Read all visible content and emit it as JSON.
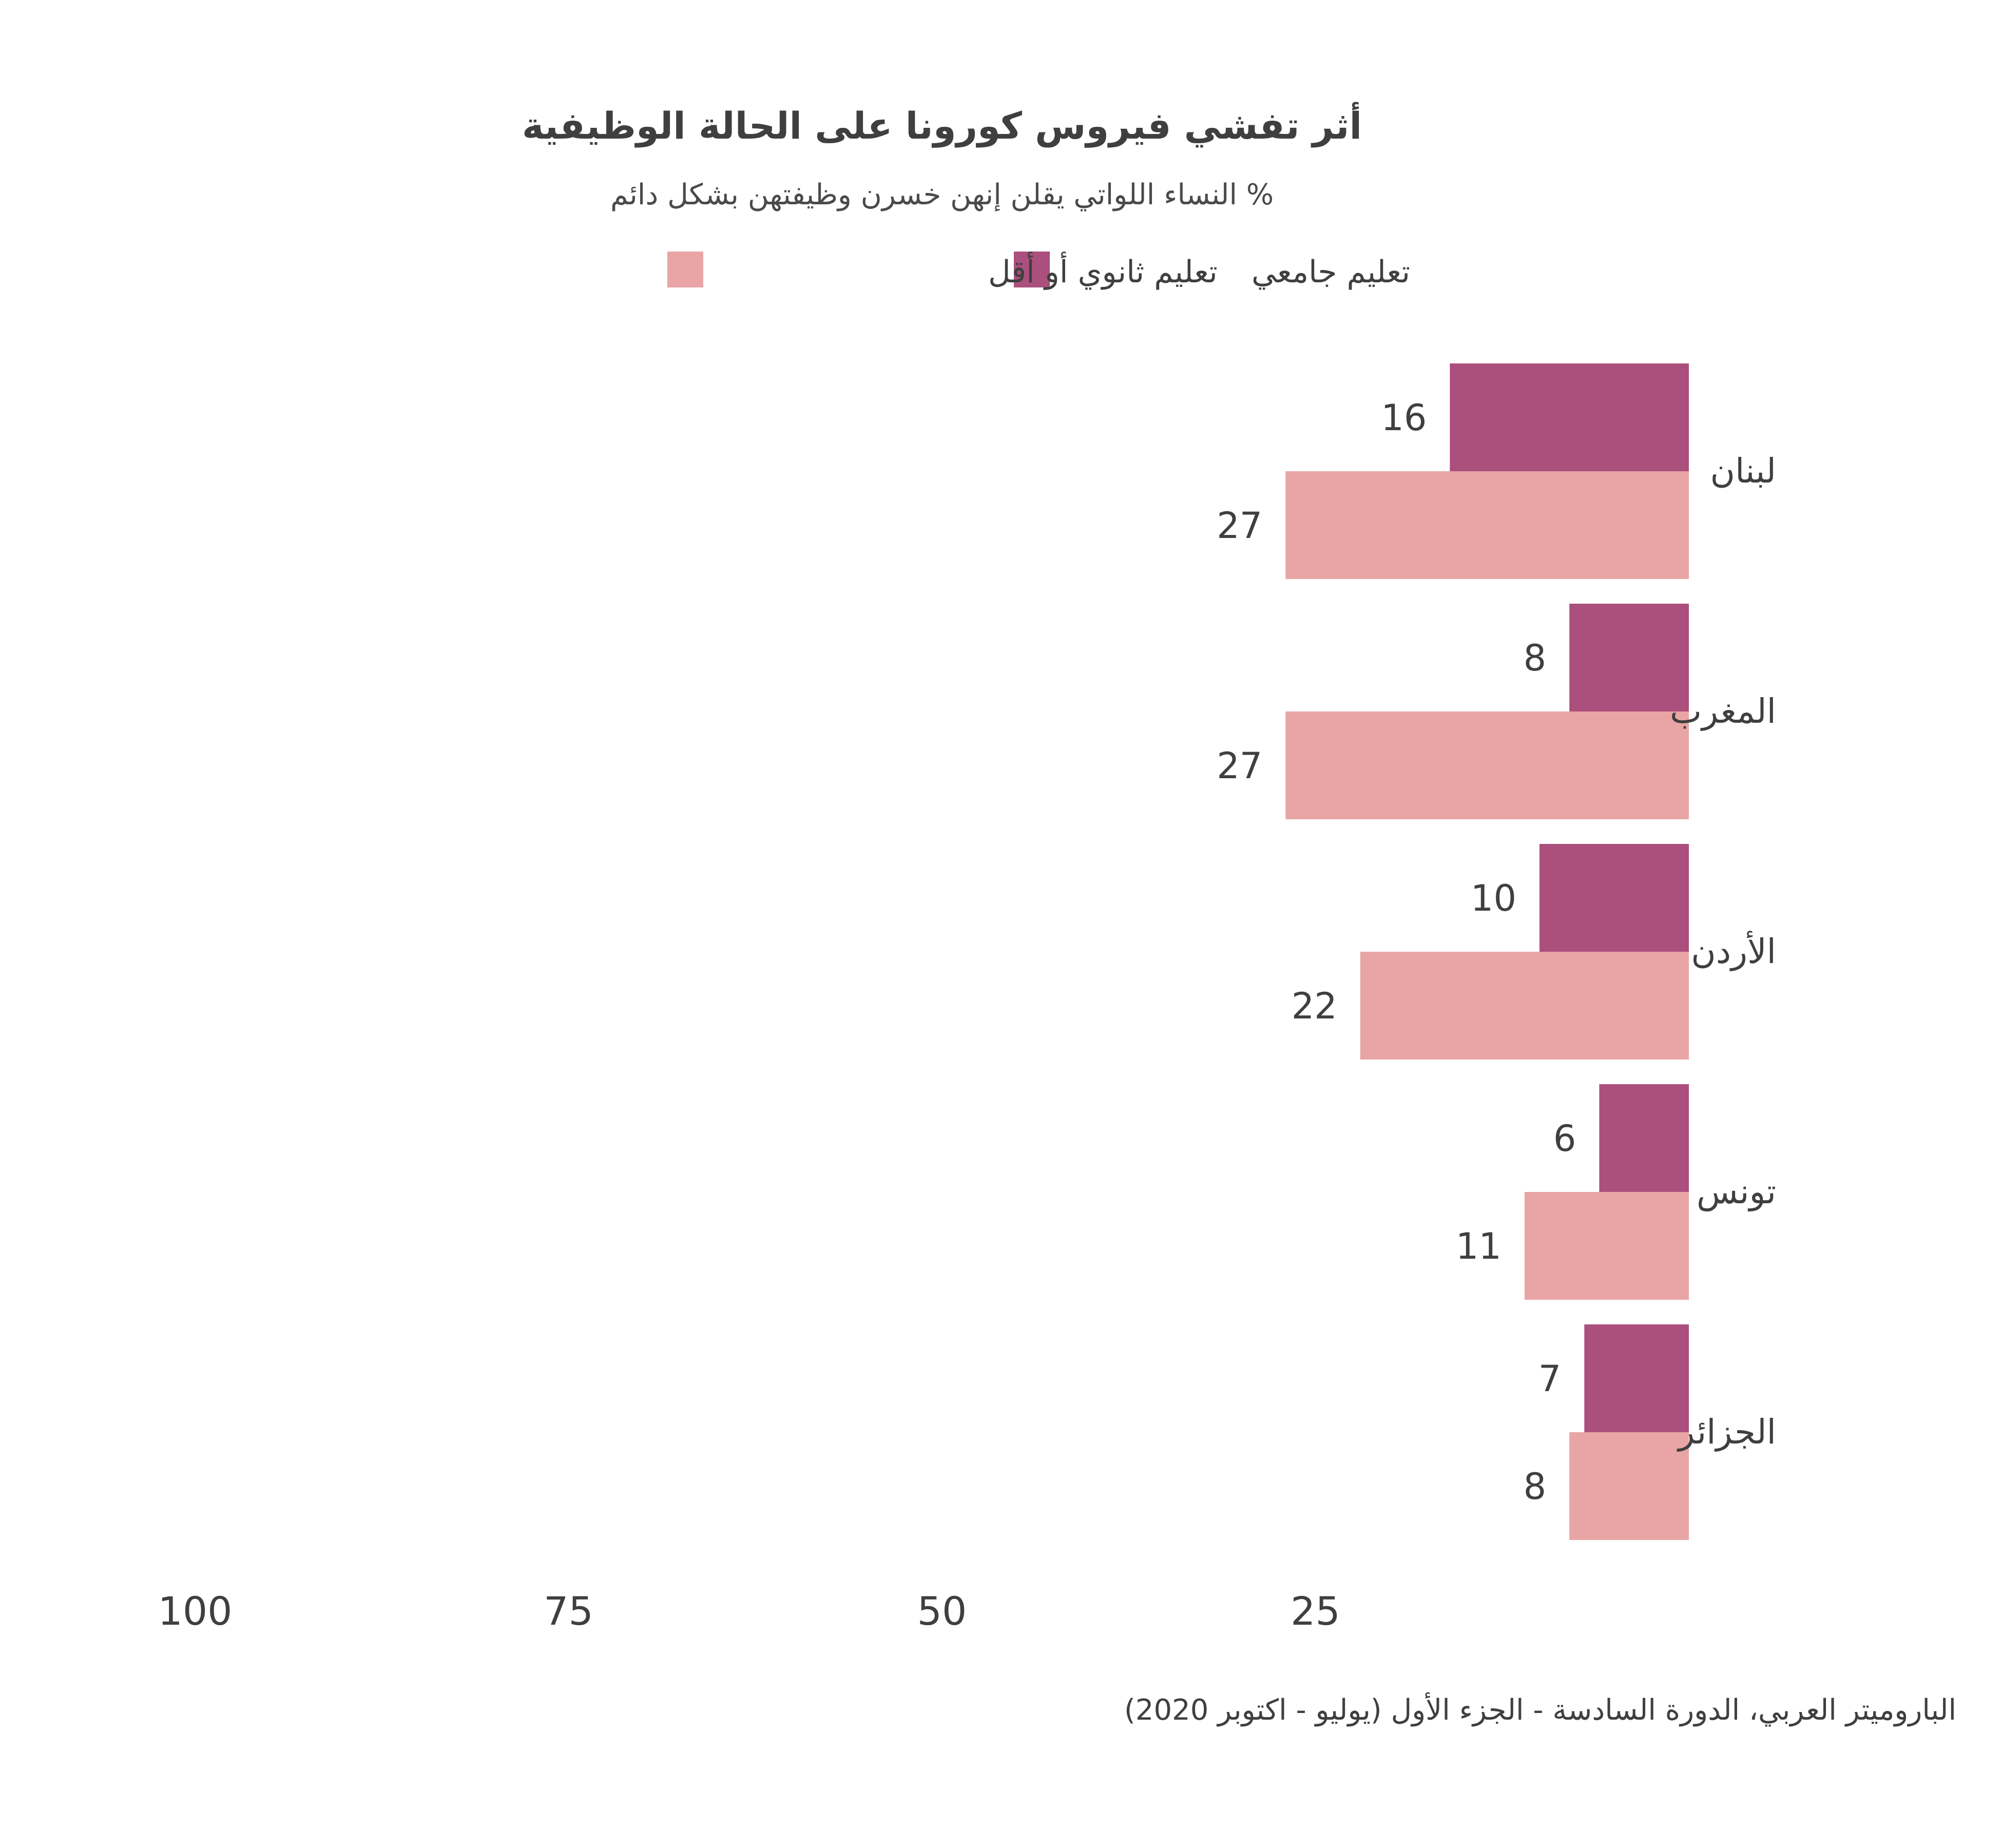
{
  "chart_data": {
    "type": "bar",
    "orientation": "horizontal",
    "direction": "rtl",
    "title": "أثر تفشي فيروس كورونا على الحالة الوظيفية",
    "subtitle": "% النساء اللواتي يقلن إنهن خسرن وظيفتهن بشكل دائم",
    "categories": [
      "لبنان",
      "المغرب",
      "الأردن",
      "تونس",
      "الجزائر"
    ],
    "series": [
      {
        "name": "تعليم جامعي",
        "color": "#ab4f7c",
        "values": [
          16,
          8,
          10,
          6,
          7
        ]
      },
      {
        "name": "تعليم ثانوي أو أقل",
        "color": "#e9a5a5",
        "values": [
          27,
          27,
          22,
          11,
          8
        ]
      }
    ],
    "xlim": [
      0,
      100
    ],
    "x_ticks": [
      "100",
      "75",
      "50",
      "25"
    ],
    "legend_position": "top",
    "grid": false,
    "source": "الباروميتر العربي، الدورة السادسة - الجزء الأول (يوليو - اكتوبر 2020)"
  }
}
